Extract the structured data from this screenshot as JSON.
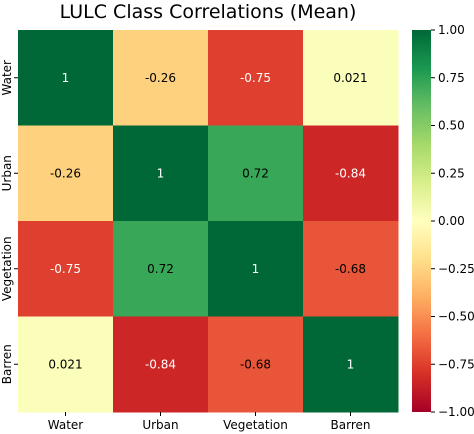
{
  "chart_data": {
    "type": "heatmap",
    "title": "LULC Class Correlations (Mean)",
    "x_categories": [
      "Water",
      "Urban",
      "Vegetation",
      "Barren"
    ],
    "y_categories": [
      "Water",
      "Urban",
      "Vegetation",
      "Barren"
    ],
    "values": [
      [
        1,
        -0.26,
        -0.75,
        0.021
      ],
      [
        -0.26,
        1,
        0.72,
        -0.84
      ],
      [
        -0.75,
        0.72,
        1,
        -0.68
      ],
      [
        0.021,
        -0.84,
        -0.68,
        1
      ]
    ],
    "annotations": [
      [
        "1",
        "-0.26",
        "-0.75",
        "0.021"
      ],
      [
        "-0.26",
        "1",
        "0.72",
        "-0.84"
      ],
      [
        "-0.75",
        "0.72",
        "1",
        "-0.68"
      ],
      [
        "0.021",
        "-0.84",
        "-0.68",
        "1"
      ]
    ],
    "colormap": "RdYlGn",
    "vmin": -1,
    "vmax": 1,
    "colorbar_ticks": [
      1.0,
      0.75,
      0.5,
      0.25,
      0.0,
      -0.25,
      -0.5,
      -0.75,
      -1.0
    ],
    "colorbar_tick_labels": [
      "1.00",
      "0.75",
      "0.50",
      "0.25",
      "0.00",
      "−0.25",
      "−0.50",
      "−0.75",
      "−1.00"
    ],
    "xlabel": "",
    "ylabel": ""
  }
}
